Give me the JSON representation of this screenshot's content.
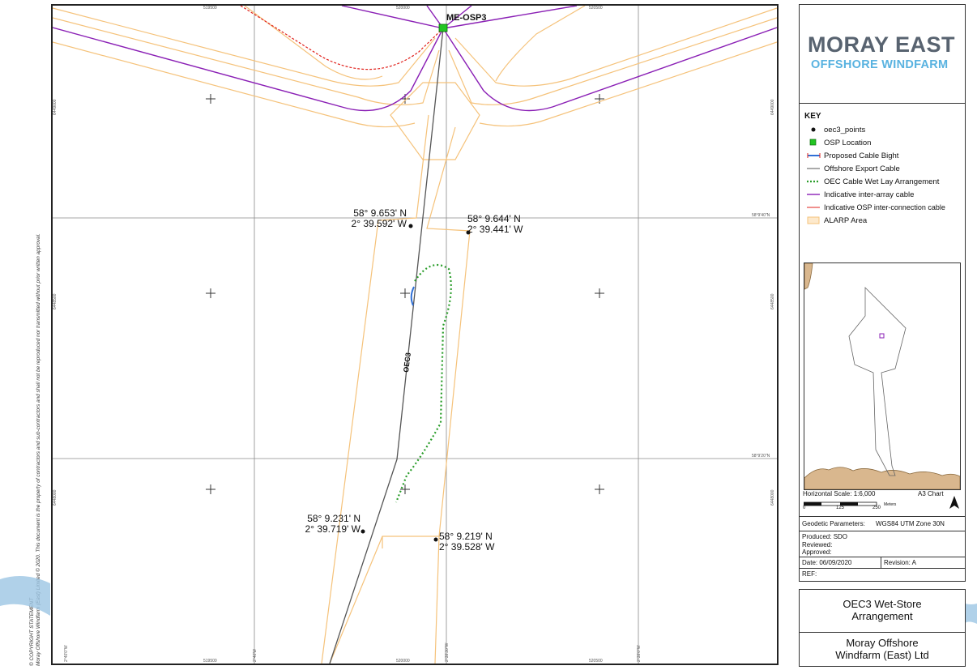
{
  "map": {
    "osp_label": "ME-OSP3",
    "cable_label": "OEC3",
    "coords": [
      {
        "lat": "58° 9.653' N",
        "lon": "2° 39.592' W"
      },
      {
        "lat": "58° 9.644' N",
        "lon": "2° 39.441' W"
      },
      {
        "lat": "58° 9.231' N",
        "lon": "2° 39.719' W"
      },
      {
        "lat": "58° 9.219' N",
        "lon": "2° 39.528' W"
      }
    ],
    "grid_top": [
      "519500",
      "520000",
      "520500"
    ],
    "grid_bottom": [
      "519500",
      "520000",
      "520500"
    ],
    "lon_labels": [
      "2°40'0\"W",
      "2°40'W",
      "2°39'30\"W",
      "2°39'0\"W"
    ],
    "northing_left": [
      "6449000",
      "6448500",
      "6448000"
    ],
    "northing_right": [
      "6449000",
      "6448500",
      "6448000"
    ],
    "lat_labels": [
      "58°9'40\"N",
      "58°9'20\"N"
    ]
  },
  "copyright": {
    "title": "© COPYRIGHT STATEMENT",
    "text": "Moray Offshore Windfarm (East) Limited © 2020. This document is the property of contractors and sub-contractors and shall not be reproduced nor transmitted without prior written approval."
  },
  "logo": {
    "line1": "MORAY EAST",
    "line2": "OFFSHORE WINDFARM"
  },
  "key": {
    "title": "KEY",
    "items": [
      "oec3_points",
      "OSP Location",
      "Proposed Cable Bight",
      "Offshore Export Cable",
      "OEC Cable Wet Lay Arrangement",
      "Indicative inter-array cable",
      "Indicative OSP inter-connection cable",
      "ALARP Area"
    ]
  },
  "inset": {
    "scale_label": "Horizontal Scale:  1:6,000",
    "chart_label": "A3 Chart",
    "scale_ticks": [
      "0",
      "125",
      "250"
    ],
    "scale_unit": "Meters"
  },
  "info": {
    "geodetic_label": "Geodetic Parameters:",
    "geodetic_value": "WGS84 UTM Zone 30N",
    "produced": "Produced: SDO",
    "reviewed": "Reviewed:",
    "approved": "Approved:",
    "date": "Date: 06/09/2020",
    "revision": "Revision: A",
    "ref": "REF:"
  },
  "title_block": {
    "title1": "OEC3 Wet-Store",
    "title2": "Arrangement",
    "company1": "Moray Offshore",
    "company2": "Windfarm (East) Ltd"
  },
  "colors": {
    "alarp": "#f5c27a",
    "interarray": "#8a1fb5",
    "osp_interconnect": "#e0201b",
    "export_cable": "#555555",
    "wetlay": "#2a9d2a",
    "osp": "#22c522",
    "logo_dark": "#586370",
    "logo_light": "#58b2e0",
    "bight": "#2f6fd6"
  }
}
